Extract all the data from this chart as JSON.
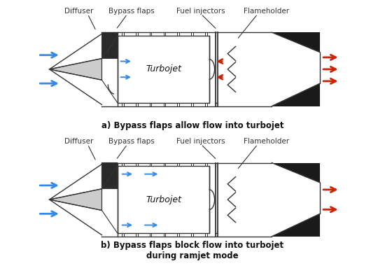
{
  "bg_color": "#ffffff",
  "line_color": "#333333",
  "blue_color": "#3388ee",
  "red_color": "#cc2200",
  "label_color": "#111111",
  "labels": [
    "Diffuser",
    "Bypass flaps",
    "Fuel injectors",
    "Flameholder"
  ],
  "caption_a": "a) Bypass flaps allow flow into turbojet",
  "caption_b": "b) Bypass flaps block flow into turbojet\nduring ramjet mode",
  "turbojet_label": "Turbojet",
  "lw": 1.0
}
